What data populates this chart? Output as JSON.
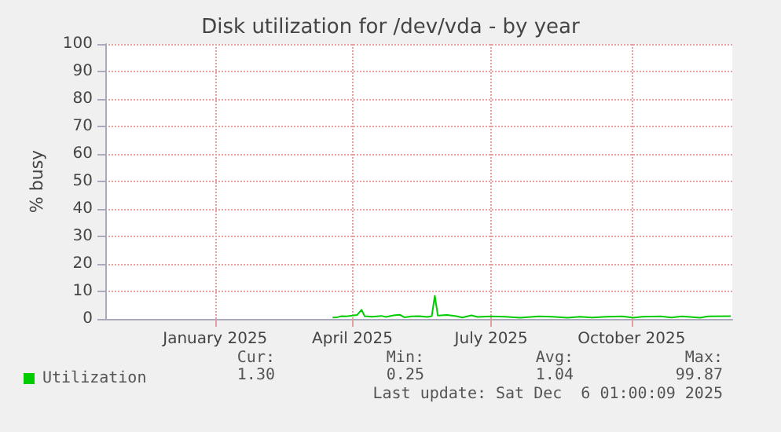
{
  "chart_data": {
    "type": "line",
    "title": "Disk utilization for /dev/vda - by year",
    "ylabel": "% busy",
    "xlim": [
      "2024-10-21",
      "2025-12-06"
    ],
    "xticks": [
      {
        "value": "2025-01-01",
        "label": "January 2025"
      },
      {
        "value": "2025-04-01",
        "label": "April 2025"
      },
      {
        "value": "2025-07-01",
        "label": "July 2025"
      },
      {
        "value": "2025-10-01",
        "label": "October 2025"
      }
    ],
    "ylim": [
      0,
      100
    ],
    "yticks": [
      0,
      10,
      20,
      30,
      40,
      50,
      60,
      70,
      80,
      90,
      100
    ],
    "grid": true,
    "legend": "bottom left",
    "marker": "none",
    "line_style": "solid",
    "series": [
      {
        "name": "Utilization",
        "color": "#00cc00",
        "x": [
          "2025-03-19",
          "2025-03-22",
          "2025-03-25",
          "2025-03-28",
          "2025-04-01",
          "2025-04-04",
          "2025-04-07",
          "2025-04-09",
          "2025-04-14",
          "2025-04-20",
          "2025-04-23",
          "2025-04-28",
          "2025-05-02",
          "2025-05-05",
          "2025-05-10",
          "2025-05-15",
          "2025-05-20",
          "2025-05-23",
          "2025-05-25",
          "2025-05-27",
          "2025-06-02",
          "2025-06-08",
          "2025-06-12",
          "2025-06-18",
          "2025-06-22",
          "2025-07-01",
          "2025-07-10",
          "2025-07-20",
          "2025-08-01",
          "2025-08-10",
          "2025-08-20",
          "2025-08-28",
          "2025-09-05",
          "2025-09-15",
          "2025-09-25",
          "2025-10-02",
          "2025-10-08",
          "2025-10-20",
          "2025-10-27",
          "2025-11-03",
          "2025-11-15",
          "2025-11-20",
          "2025-12-05"
        ],
        "values": [
          0.5,
          0.6,
          1.0,
          0.9,
          1.2,
          1.4,
          3.3,
          1.0,
          0.8,
          1.1,
          0.7,
          1.3,
          1.5,
          0.6,
          0.9,
          1.0,
          0.7,
          1.0,
          8.4,
          1.2,
          1.4,
          1.0,
          0.5,
          1.3,
          0.7,
          0.9,
          0.8,
          0.4,
          0.9,
          0.8,
          0.4,
          0.8,
          0.5,
          0.8,
          0.9,
          0.4,
          0.8,
          0.9,
          0.5,
          0.9,
          0.4,
          0.9,
          1.0
        ]
      }
    ],
    "annotations": [
      "Cur:",
      "Min:",
      "Avg:",
      "Max:",
      "1.30",
      "0.25",
      "1.04",
      "99.87",
      "Last update: Sat Dec  6 01:00:09 2025"
    ]
  }
}
